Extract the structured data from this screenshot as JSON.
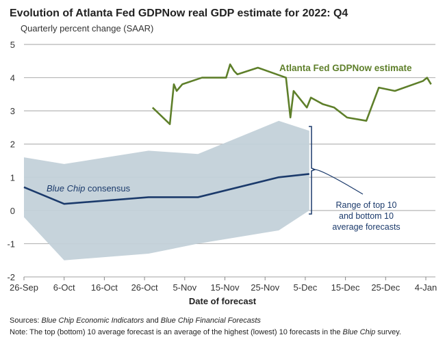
{
  "chart_data": {
    "type": "line",
    "title": "Evolution of Atlanta Fed GDPNow real GDP estimate for 2022: Q4",
    "subtitle": "Quarterly percent change (SAAR)",
    "xlabel": "Date of forecast",
    "ylabel": "",
    "x_unit": "days since 26-Sep",
    "xlim": [
      0,
      100
    ],
    "ylim": [
      -2,
      5
    ],
    "yticks": [
      5,
      4,
      3,
      2,
      1,
      0,
      -1,
      -2
    ],
    "ytick_labels": [
      "5",
      "4",
      "3",
      "2",
      "1",
      "0",
      "-1",
      "-2"
    ],
    "xticks": [
      0,
      10,
      20,
      30,
      40,
      50,
      60,
      70,
      80,
      90,
      100
    ],
    "xtick_labels": [
      "26-Sep",
      "6-Oct",
      "16-Oct",
      "26-Oct",
      "5-Nov",
      "15-Nov",
      "25-Nov",
      "5-Dec",
      "15-Dec",
      "25-Dec",
      "4-Jan"
    ],
    "grid": true,
    "series": [
      {
        "name": "Atlanta Fed GDPNow estimate",
        "color": "#5e7f2a",
        "x": [
          32,
          36.3,
          37.3,
          38,
          39.4,
          44.3,
          50.3,
          51.3,
          52.3,
          53.1,
          58.2,
          65.2,
          66.3,
          67.1,
          70.4,
          71.4,
          74.4,
          77.2,
          80.4,
          85.2,
          88.3,
          92.3,
          99.3,
          100.3,
          101.3
        ],
        "values": [
          3.1,
          2.6,
          3.8,
          3.6,
          3.8,
          4.0,
          4.0,
          4.4,
          4.2,
          4.1,
          4.3,
          4.0,
          2.8,
          3.6,
          3.1,
          3.4,
          3.2,
          3.1,
          2.8,
          2.7,
          3.7,
          3.6,
          3.9,
          4.0,
          3.8
        ]
      },
      {
        "name": "Blue Chip consensus",
        "color": "#1b3a6b",
        "x": [
          0,
          10,
          31,
          43.3,
          63.4,
          71
        ],
        "values": [
          0.7,
          0.2,
          0.4,
          0.4,
          1.0,
          1.1
        ]
      }
    ],
    "band": {
      "name": "Range of top 10 and bottom 10 average forecasts",
      "color": "#c3d1d9",
      "x": [
        0,
        10,
        31,
        43.3,
        63.4,
        71
      ],
      "upper": [
        1.6,
        1.4,
        1.8,
        1.7,
        2.7,
        2.4
      ],
      "lower": [
        -0.2,
        -1.5,
        -1.3,
        -1.0,
        -0.6,
        0.0
      ]
    },
    "annotations": {
      "gdpnow_label": "Atlanta Fed GDPNow estimate",
      "bluechip_italic": "Blue Chip",
      "bluechip_rest": " consensus",
      "range_lines": [
        "Range of top 10",
        "and bottom 10",
        "average forecasts"
      ]
    }
  },
  "footnotes": {
    "sources_label": "Sources:",
    "sources_italic1": "Blue Chip Economic Indicators",
    "sources_mid": " and ",
    "sources_italic2": "Blue Chip Financial Forecasts",
    "note_label": "Note",
    "note_text": ": The top (bottom) 10 average forecast is an average of the highest (lowest) 10 forecasts in the ",
    "note_italic": "Blue Chip",
    "note_end": " survey."
  }
}
